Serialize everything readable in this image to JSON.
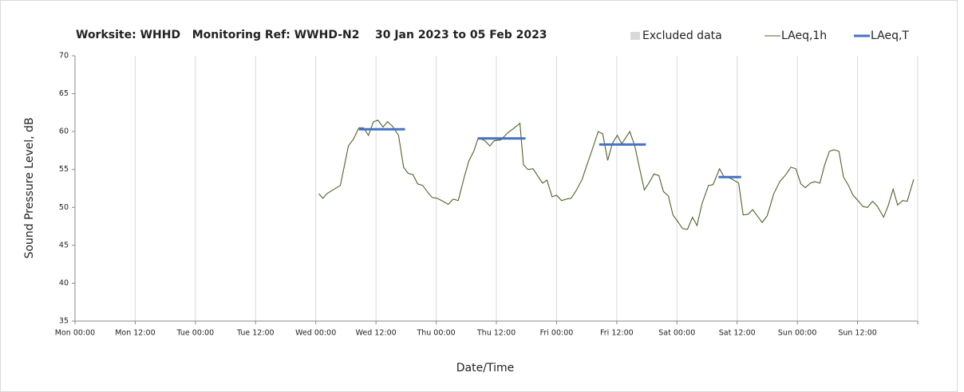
{
  "chart_data": {
    "type": "line",
    "title": "Worksite: WHHD   Monitoring Ref: WWHD-N2    30 Jan 2023 to 05 Feb 2023",
    "xlabel": "Date/Time",
    "ylabel": "Sound Pressure Level, dB",
    "xlim": [
      0,
      168
    ],
    "ylim": [
      35,
      70
    ],
    "yticks": [
      35,
      40,
      45,
      50,
      55,
      60,
      65,
      70
    ],
    "xticks": [
      {
        "value": 0,
        "label": "Mon 00:00"
      },
      {
        "value": 12,
        "label": "Mon 12:00"
      },
      {
        "value": 24,
        "label": "Tue 00:00"
      },
      {
        "value": 36,
        "label": "Tue 12:00"
      },
      {
        "value": 48,
        "label": "Wed 00:00"
      },
      {
        "value": 60,
        "label": "Wed 12:00"
      },
      {
        "value": 72,
        "label": "Thu 00:00"
      },
      {
        "value": 84,
        "label": "Thu 12:00"
      },
      {
        "value": 96,
        "label": "Fri 00:00"
      },
      {
        "value": 108,
        "label": "Fri 12:00"
      },
      {
        "value": 120,
        "label": "Sat 00:00"
      },
      {
        "value": 132,
        "label": "Sat 12:00"
      },
      {
        "value": 144,
        "label": "Sun 00:00"
      },
      {
        "value": 156,
        "label": "Sun 12:00"
      },
      {
        "value": 168,
        "label": ""
      }
    ],
    "xgrid": true,
    "series": [
      {
        "name": "Excluded data",
        "color": "#d9d9d9",
        "kind": "area"
      },
      {
        "name": "LAeq,1h",
        "color": "#4f6228",
        "kind": "line",
        "x": [
          48.6,
          49.4,
          50.2,
          51.4,
          52.9,
          54.5,
          55.5,
          56.6,
          57.5,
          58.5,
          59.5,
          60.4,
          61.4,
          62.3,
          63.3,
          64.5,
          65.5,
          66.4,
          67.4,
          68.3,
          69.3,
          70.2,
          71.2,
          72.2,
          73.1,
          74.4,
          75.4,
          76.4,
          77.6,
          78.5,
          79.5,
          80.4,
          81.7,
          82.7,
          83.6,
          84.9,
          86.2,
          87.6,
          88.7,
          89.4,
          90.3,
          91.3,
          92.2,
          93.2,
          94.1,
          95.1,
          96.0,
          97.0,
          98.0,
          98.9,
          99.9,
          101.1,
          102.1,
          103.0,
          104.3,
          105.2,
          106.2,
          107.1,
          108.1,
          109.0,
          110.6,
          111.6,
          112.5,
          113.5,
          114.4,
          115.4,
          116.4,
          117.3,
          118.3,
          119.2,
          120.2,
          121.1,
          122.1,
          123.1,
          124.0,
          125.0,
          126.3,
          127.2,
          128.5,
          129.4,
          130.4,
          131.3,
          132.3,
          133.2,
          134.2,
          135.1,
          136.1,
          137.0,
          138.0,
          139.3,
          140.5,
          141.8,
          142.7,
          143.7,
          144.7,
          145.6,
          146.6,
          147.5,
          148.5,
          149.4,
          150.4,
          151.3,
          152.3,
          153.2,
          154.2,
          155.1,
          156.1,
          157.1,
          158.0,
          159.0,
          159.9,
          161.2,
          162.1,
          163.1,
          164.0,
          165.0,
          165.9,
          167.2
        ],
        "values": [
          51.8,
          51.2,
          51.8,
          52.3,
          52.9,
          58.1,
          59.0,
          60.5,
          60.5,
          59.5,
          61.3,
          61.5,
          60.6,
          61.3,
          60.7,
          59.5,
          55.3,
          54.5,
          54.3,
          53.1,
          52.9,
          52.1,
          51.3,
          51.2,
          50.9,
          50.4,
          51.1,
          50.9,
          54.0,
          56.1,
          57.4,
          59.2,
          58.8,
          58.1,
          58.8,
          58.9,
          59.8,
          60.5,
          61.1,
          55.6,
          55.0,
          55.1,
          54.2,
          53.2,
          53.6,
          51.4,
          51.6,
          50.9,
          51.1,
          51.2,
          52.2,
          53.7,
          55.7,
          57.4,
          60.0,
          59.7,
          56.2,
          58.4,
          59.5,
          58.4,
          60.0,
          58.1,
          55.3,
          52.3,
          53.2,
          54.4,
          54.2,
          52.1,
          51.5,
          49.0,
          48.1,
          47.2,
          47.1,
          48.7,
          47.6,
          50.5,
          52.9,
          53.0,
          55.1,
          54.0,
          53.9,
          53.6,
          53.2,
          49.0,
          49.1,
          49.7,
          48.8,
          48.0,
          48.9,
          51.8,
          53.4,
          54.4,
          55.3,
          55.1,
          53.1,
          52.6,
          53.2,
          53.4,
          53.2,
          55.5,
          57.4,
          57.6,
          57.4,
          54.0,
          52.9,
          51.6,
          50.9,
          50.1,
          50.0,
          50.8,
          50.2,
          48.7,
          50.2,
          52.4,
          50.3,
          50.9,
          50.8,
          53.7
        ]
      },
      {
        "name": "LAeq,T",
        "color": "#4472c4",
        "kind": "segments",
        "segments": [
          {
            "x": [
              56.6,
              65.8
            ],
            "value": 60.3
          },
          {
            "x": [
              80.3,
              89.8
            ],
            "value": 59.1
          },
          {
            "x": [
              104.5,
              113.8
            ],
            "value": 58.3
          },
          {
            "x": [
              128.3,
              132.8
            ],
            "value": 54.0
          }
        ]
      }
    ]
  }
}
